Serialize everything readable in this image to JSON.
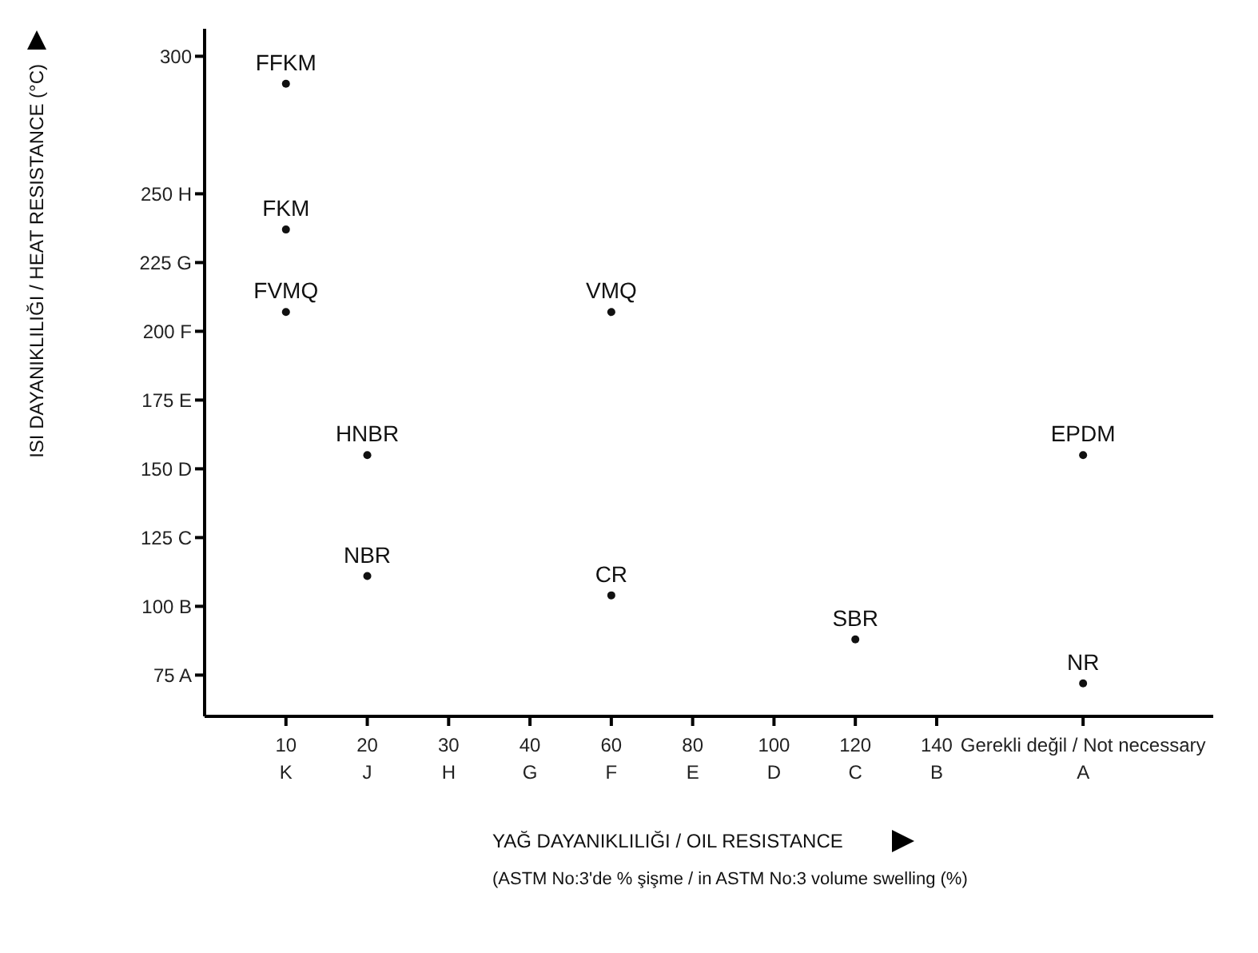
{
  "chart_data": {
    "type": "scatter",
    "xlabel": "YAĞ DAYANIKLILIĞI / OIL RESISTANCE",
    "ylabel": "ISI DAYANIKLILIĞI / HEAT RESISTANCE (°C)",
    "annotations": [
      "(ASTM No:3'de % şişme / in ASTM No:3 volume swelling (%)"
    ],
    "categories": [
      "10\nK",
      "20\nJ",
      "30\nH",
      "40\nG",
      "60\nF",
      "80\nE",
      "100\nD",
      "120\nC",
      "140\nB",
      "Gerekli değil / Not necessary\nA"
    ],
    "ylim": [
      60,
      310
    ],
    "yticks": [
      {
        "value": 75,
        "label": "75 A"
      },
      {
        "value": 100,
        "label": "100 B"
      },
      {
        "value": 125,
        "label": "125 C"
      },
      {
        "value": 150,
        "label": "150 D"
      },
      {
        "value": 175,
        "label": "175 E"
      },
      {
        "value": 200,
        "label": "200 F"
      },
      {
        "value": 225,
        "label": "225 G"
      },
      {
        "value": 250,
        "label": "250 H"
      },
      300
    ],
    "grid": false,
    "marker": "circle",
    "series": [
      {
        "color": "#111111",
        "x": [
          "10\nK",
          "10\nK",
          "10\nK",
          "60\nF",
          "20\nJ",
          "Gerekli değil / Not necessary\nA",
          "20\nJ",
          "60\nF",
          "120\nC",
          "Gerekli değil / Not necessary\nA"
        ],
        "values": [
          290,
          237,
          207,
          207,
          155,
          155,
          111,
          104,
          88,
          72
        ],
        "value_labels": [
          "FFKM",
          "FKM",
          "FVMQ",
          "VMQ",
          "HNBR",
          "EPDM",
          "NBR",
          "CR",
          "SBR",
          "NR"
        ]
      }
    ]
  }
}
